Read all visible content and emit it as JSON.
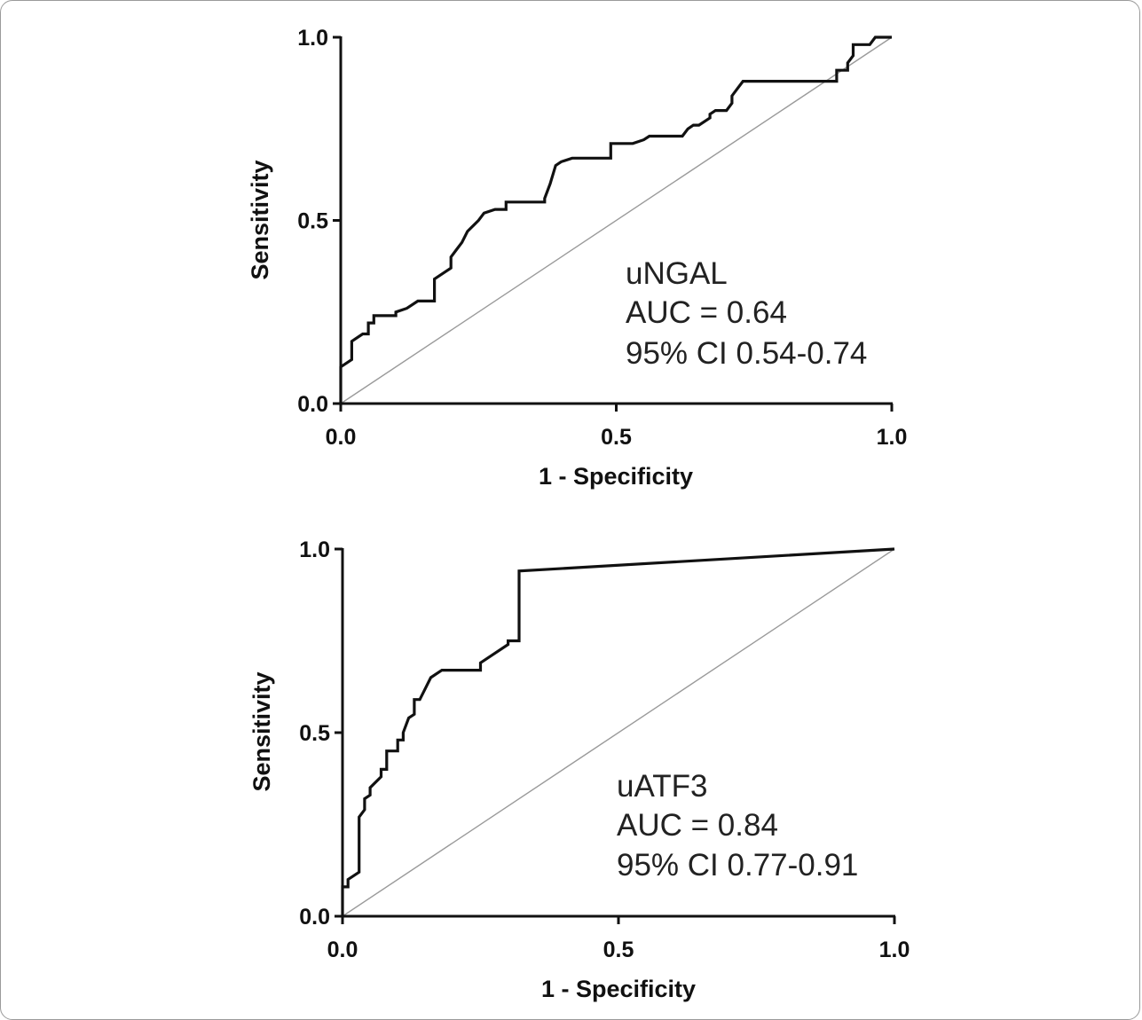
{
  "chart_data": [
    {
      "type": "line",
      "xlabel": "1 - Specificity",
      "ylabel": "Sensitivity",
      "xlim": [
        0,
        1
      ],
      "ylim": [
        0,
        1
      ],
      "xticks": [
        "0.0",
        "0.5",
        "1.0"
      ],
      "yticks": [
        "0.0",
        "0.5",
        "1.0"
      ],
      "annotations": [
        "uNGAL",
        "AUC = 0.64",
        "95% CI 0.54-0.74"
      ],
      "reference_line": {
        "x": [
          0,
          1
        ],
        "y": [
          0,
          1
        ],
        "color": "#9a9a9a"
      },
      "series": [
        {
          "color": "#111111",
          "x": [
            0,
            0,
            0.02,
            0.02,
            0.04,
            0.05,
            0.05,
            0.06,
            0.06,
            0.09,
            0.1,
            0.1,
            0.12,
            0.14,
            0.17,
            0.17,
            0.17,
            0.19,
            0.2,
            0.2,
            0.21,
            0.22,
            0.23,
            0.25,
            0.26,
            0.28,
            0.3,
            0.3,
            0.33,
            0.37,
            0.37,
            0.38,
            0.39,
            0.4,
            0.42,
            0.45,
            0.49,
            0.49,
            0.53,
            0.55,
            0.56,
            0.6,
            0.62,
            0.63,
            0.64,
            0.65,
            0.67,
            0.67,
            0.68,
            0.7,
            0.71,
            0.71,
            0.72,
            0.73,
            0.87,
            0.9,
            0.9,
            0.92,
            0.92,
            0.93,
            0.93,
            0.96,
            0.97,
            1.0
          ],
          "y": [
            0,
            0.1,
            0.12,
            0.17,
            0.19,
            0.19,
            0.22,
            0.22,
            0.24,
            0.24,
            0.24,
            0.25,
            0.26,
            0.28,
            0.28,
            0.32,
            0.34,
            0.36,
            0.37,
            0.4,
            0.42,
            0.44,
            0.47,
            0.5,
            0.52,
            0.53,
            0.53,
            0.55,
            0.55,
            0.55,
            0.56,
            0.6,
            0.65,
            0.66,
            0.67,
            0.67,
            0.67,
            0.71,
            0.71,
            0.72,
            0.73,
            0.73,
            0.73,
            0.75,
            0.76,
            0.76,
            0.78,
            0.79,
            0.8,
            0.8,
            0.82,
            0.84,
            0.86,
            0.88,
            0.88,
            0.88,
            0.91,
            0.91,
            0.93,
            0.95,
            0.98,
            0.98,
            1.0,
            1.0
          ]
        }
      ]
    },
    {
      "type": "line",
      "xlabel": "1 - Specificity",
      "ylabel": "Sensitivity",
      "xlim": [
        0,
        1
      ],
      "ylim": [
        0,
        1
      ],
      "xticks": [
        "0.0",
        "0.5",
        "1.0"
      ],
      "yticks": [
        "0.0",
        "0.5",
        "1.0"
      ],
      "annotations": [
        "uATF3",
        "AUC = 0.84",
        "95% CI 0.77-0.91"
      ],
      "reference_line": {
        "x": [
          0,
          1
        ],
        "y": [
          0,
          1
        ],
        "color": "#9a9a9a"
      },
      "series": [
        {
          "color": "#111111",
          "x": [
            0,
            0,
            0.01,
            0.01,
            0.03,
            0.03,
            0.04,
            0.04,
            0.05,
            0.05,
            0.07,
            0.07,
            0.08,
            0.08,
            0.1,
            0.1,
            0.11,
            0.11,
            0.12,
            0.13,
            0.13,
            0.14,
            0.15,
            0.16,
            0.18,
            0.25,
            0.25,
            0.27,
            0.3,
            0.3,
            0.32,
            0.32,
            0.32,
            1.0
          ],
          "y": [
            0,
            0.08,
            0.08,
            0.1,
            0.12,
            0.27,
            0.29,
            0.32,
            0.33,
            0.35,
            0.38,
            0.4,
            0.4,
            0.45,
            0.45,
            0.48,
            0.48,
            0.5,
            0.54,
            0.55,
            0.59,
            0.59,
            0.62,
            0.65,
            0.67,
            0.67,
            0.69,
            0.71,
            0.74,
            0.75,
            0.75,
            0.85,
            0.94,
            1.0
          ]
        }
      ]
    }
  ]
}
